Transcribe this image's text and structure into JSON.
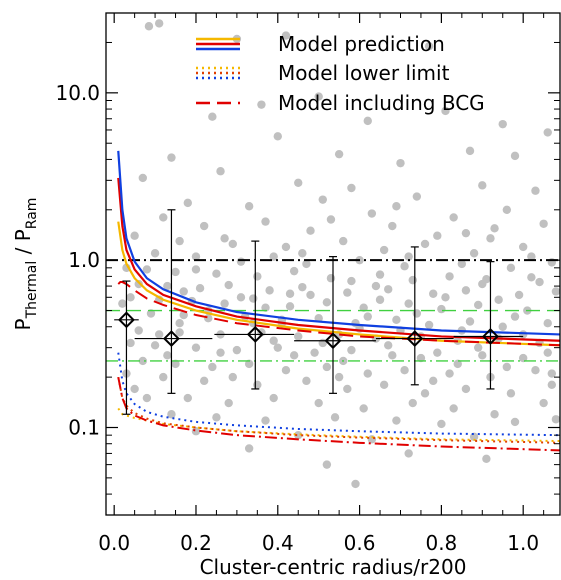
{
  "chart_data": {
    "type": "scatter",
    "title": "",
    "xlabel": "Cluster-centric radius/r200",
    "ylabel": {
      "main": "P",
      "sub1": "Thermal",
      "sep": " / ",
      "sub2": "Ram"
    },
    "xlim": [
      -0.02,
      1.09
    ],
    "ylim": [
      0.03,
      30
    ],
    "yscale": "log",
    "xticks": [
      "0.0",
      "0.2",
      "0.4",
      "0.6",
      "0.8",
      "1.0"
    ],
    "xtick_values": [
      0.0,
      0.2,
      0.4,
      0.6,
      0.8,
      1.0
    ],
    "yticks": [
      "0.1",
      "1.0",
      "10.0"
    ],
    "ytick_values": [
      0.1,
      1.0,
      10.0
    ],
    "legend": [
      {
        "label": "Model prediction",
        "style": "solid",
        "colors": [
          "#f5b800",
          "#e00000",
          "#1040e0"
        ]
      },
      {
        "label": "Model lower limit",
        "style": "dotted",
        "colors": [
          "#f5b800",
          "#e04000",
          "#1040e0"
        ]
      },
      {
        "label": "Model including BCG",
        "style": "dashed",
        "colors": [
          "#e00000"
        ]
      }
    ],
    "reference_lines": [
      {
        "y": 1.0,
        "style": "dash-dot",
        "color": "#000000"
      },
      {
        "y": 0.5,
        "style": "dashed",
        "color": "#40d040"
      },
      {
        "y": 0.25,
        "style": "dash-dot",
        "color": "#40d040"
      }
    ],
    "binned_points": [
      {
        "x": 0.03,
        "y": 0.44,
        "xerr": [
          0.0,
          0.06
        ],
        "yerr": [
          0.12,
          0.75
        ]
      },
      {
        "x": 0.14,
        "y": 0.34,
        "xerr": [
          0.05,
          0.24
        ],
        "yerr": [
          0.16,
          2.0
        ]
      },
      {
        "x": 0.345,
        "y": 0.36,
        "xerr": [
          0.245,
          0.44
        ],
        "yerr": [
          0.17,
          1.3
        ]
      },
      {
        "x": 0.535,
        "y": 0.33,
        "xerr": [
          0.44,
          0.64
        ],
        "yerr": [
          0.16,
          1.05
        ]
      },
      {
        "x": 0.735,
        "y": 0.34,
        "xerr": [
          0.64,
          0.83
        ],
        "yerr": [
          0.18,
          1.2
        ]
      },
      {
        "x": 0.92,
        "y": 0.35,
        "xerr": [
          0.83,
          1.0
        ],
        "yerr": [
          0.17,
          0.98
        ]
      }
    ],
    "model_curves": [
      {
        "style": "solid",
        "color": "#f5b800",
        "x": [
          0.01,
          0.02,
          0.03,
          0.05,
          0.08,
          0.12,
          0.2,
          0.3,
          0.45,
          0.6,
          0.8,
          1.09
        ],
        "y": [
          1.7,
          1.15,
          0.95,
          0.78,
          0.66,
          0.58,
          0.5,
          0.44,
          0.39,
          0.36,
          0.33,
          0.31
        ]
      },
      {
        "style": "solid",
        "color": "#e00000",
        "x": [
          0.01,
          0.02,
          0.03,
          0.05,
          0.08,
          0.12,
          0.2,
          0.3,
          0.45,
          0.6,
          0.8,
          1.09
        ],
        "y": [
          3.1,
          1.6,
          1.15,
          0.88,
          0.72,
          0.62,
          0.53,
          0.46,
          0.41,
          0.38,
          0.35,
          0.33
        ]
      },
      {
        "style": "solid",
        "color": "#1040e0",
        "x": [
          0.01,
          0.02,
          0.03,
          0.05,
          0.08,
          0.12,
          0.2,
          0.3,
          0.45,
          0.6,
          0.8,
          1.09
        ],
        "y": [
          4.5,
          2.0,
          1.35,
          0.98,
          0.78,
          0.67,
          0.56,
          0.49,
          0.44,
          0.41,
          0.38,
          0.36
        ]
      },
      {
        "style": "dashed",
        "color": "#e00000",
        "x": [
          0.01,
          0.015,
          0.02,
          0.03,
          0.05,
          0.08,
          0.12,
          0.2,
          0.3,
          0.45,
          0.6,
          0.8,
          1.09
        ],
        "y": [
          0.72,
          0.74,
          0.74,
          0.72,
          0.66,
          0.59,
          0.54,
          0.47,
          0.42,
          0.38,
          0.35,
          0.33,
          0.31
        ]
      },
      {
        "style": "dotted",
        "color": "#f5b800",
        "x": [
          0.01,
          0.02,
          0.03,
          0.05,
          0.08,
          0.12,
          0.2,
          0.3,
          0.45,
          0.6,
          0.8,
          1.09
        ],
        "y": [
          0.13,
          0.12,
          0.118,
          0.114,
          0.11,
          0.105,
          0.1,
          0.095,
          0.091,
          0.088,
          0.085,
          0.083
        ]
      },
      {
        "style": "dotted",
        "color": "#e04000",
        "x": [
          0.01,
          0.02,
          0.03,
          0.05,
          0.08,
          0.12,
          0.2,
          0.3,
          0.45,
          0.6,
          0.8,
          1.09
        ],
        "y": [
          0.2,
          0.15,
          0.135,
          0.122,
          0.113,
          0.106,
          0.1,
          0.095,
          0.09,
          0.087,
          0.084,
          0.081
        ]
      },
      {
        "style": "dotted",
        "color": "#1040e0",
        "x": [
          0.01,
          0.02,
          0.03,
          0.05,
          0.08,
          0.12,
          0.2,
          0.3,
          0.45,
          0.6,
          0.8,
          1.09
        ],
        "y": [
          0.28,
          0.19,
          0.16,
          0.138,
          0.124,
          0.116,
          0.108,
          0.103,
          0.098,
          0.095,
          0.092,
          0.09
        ]
      },
      {
        "style": "dash-dot",
        "color": "#e00000",
        "x": [
          0.01,
          0.02,
          0.03,
          0.05,
          0.08,
          0.12,
          0.2,
          0.3,
          0.45,
          0.6,
          0.8,
          1.09
        ],
        "y": [
          0.2,
          0.15,
          0.13,
          0.118,
          0.11,
          0.103,
          0.096,
          0.09,
          0.085,
          0.081,
          0.077,
          0.073
        ]
      }
    ],
    "scatter_color": "#c0c0c0",
    "scatter_points": [
      [
        0.085,
        25
      ],
      [
        0.11,
        26
      ],
      [
        0.3,
        21
      ],
      [
        0.42,
        22
      ],
      [
        0.77,
        19
      ],
      [
        0.95,
        6.5
      ],
      [
        1.06,
        5.8
      ],
      [
        0.36,
        8.5
      ],
      [
        0.5,
        9.5
      ],
      [
        0.62,
        6.8
      ],
      [
        0.81,
        7.8
      ],
      [
        0.87,
        4.5
      ],
      [
        0.98,
        4.2
      ],
      [
        0.24,
        7.2
      ],
      [
        0.4,
        5.5
      ],
      [
        0.55,
        4.3
      ],
      [
        0.7,
        3.8
      ],
      [
        0.14,
        4.1
      ],
      [
        0.26,
        3.4
      ],
      [
        0.45,
        2.9
      ],
      [
        0.58,
        2.7
      ],
      [
        0.74,
        2.4
      ],
      [
        0.9,
        2.8
      ],
      [
        1.03,
        2.6
      ],
      [
        0.07,
        3.1
      ],
      [
        0.18,
        2.2
      ],
      [
        0.33,
        2.1
      ],
      [
        0.51,
        2.3
      ],
      [
        0.63,
        1.9
      ],
      [
        0.83,
        1.8
      ],
      [
        0.96,
        2.0
      ],
      [
        0.12,
        1.8
      ],
      [
        0.22,
        1.6
      ],
      [
        0.37,
        1.7
      ],
      [
        0.48,
        1.5
      ],
      [
        0.68,
        1.6
      ],
      [
        0.79,
        1.4
      ],
      [
        0.93,
        1.55
      ],
      [
        1.05,
        1.65
      ],
      [
        0.05,
        1.4
      ],
      [
        0.16,
        1.3
      ],
      [
        0.29,
        1.25
      ],
      [
        0.42,
        1.2
      ],
      [
        0.56,
        1.3
      ],
      [
        0.66,
        1.15
      ],
      [
        0.76,
        1.25
      ],
      [
        0.88,
        1.1
      ],
      [
        1.0,
        1.2
      ],
      [
        0.1,
        1.1
      ],
      [
        0.2,
        1.05
      ],
      [
        0.31,
        0.98
      ],
      [
        0.39,
        1.05
      ],
      [
        0.47,
        0.95
      ],
      [
        0.6,
        1.0
      ],
      [
        0.71,
        0.92
      ],
      [
        0.85,
        0.95
      ],
      [
        0.97,
        0.9
      ],
      [
        1.07,
        0.97
      ],
      [
        0.08,
        0.88
      ],
      [
        0.15,
        0.85
      ],
      [
        0.25,
        0.83
      ],
      [
        0.35,
        0.8
      ],
      [
        0.44,
        0.86
      ],
      [
        0.53,
        0.78
      ],
      [
        0.65,
        0.82
      ],
      [
        0.73,
        0.76
      ],
      [
        0.82,
        0.8
      ],
      [
        0.91,
        0.77
      ],
      [
        1.02,
        0.79
      ],
      [
        0.06,
        0.72
      ],
      [
        0.13,
        0.7
      ],
      [
        0.21,
        0.68
      ],
      [
        0.28,
        0.71
      ],
      [
        0.38,
        0.66
      ],
      [
        0.46,
        0.69
      ],
      [
        0.57,
        0.64
      ],
      [
        0.67,
        0.67
      ],
      [
        0.78,
        0.63
      ],
      [
        0.86,
        0.66
      ],
      [
        0.99,
        0.62
      ],
      [
        1.08,
        0.65
      ],
      [
        0.04,
        0.6
      ],
      [
        0.11,
        0.58
      ],
      [
        0.19,
        0.57
      ],
      [
        0.27,
        0.55
      ],
      [
        0.34,
        0.59
      ],
      [
        0.43,
        0.53
      ],
      [
        0.52,
        0.56
      ],
      [
        0.61,
        0.52
      ],
      [
        0.72,
        0.55
      ],
      [
        0.8,
        0.51
      ],
      [
        0.89,
        0.54
      ],
      [
        1.01,
        0.5
      ],
      [
        0.09,
        0.48
      ],
      [
        0.17,
        0.47
      ],
      [
        0.23,
        0.45
      ],
      [
        0.32,
        0.46
      ],
      [
        0.41,
        0.44
      ],
      [
        0.5,
        0.45
      ],
      [
        0.59,
        0.42
      ],
      [
        0.69,
        0.44
      ],
      [
        0.77,
        0.41
      ],
      [
        0.87,
        0.43
      ],
      [
        0.95,
        0.4
      ],
      [
        1.06,
        0.42
      ],
      [
        0.06,
        0.38
      ],
      [
        0.16,
        0.37
      ],
      [
        0.26,
        0.36
      ],
      [
        0.36,
        0.37
      ],
      [
        0.45,
        0.35
      ],
      [
        0.55,
        0.36
      ],
      [
        0.64,
        0.34
      ],
      [
        0.75,
        0.35
      ],
      [
        0.84,
        0.33
      ],
      [
        0.94,
        0.34
      ],
      [
        1.04,
        0.32
      ],
      [
        0.1,
        0.31
      ],
      [
        0.2,
        0.3
      ],
      [
        0.3,
        0.29
      ],
      [
        0.4,
        0.3
      ],
      [
        0.49,
        0.28
      ],
      [
        0.58,
        0.29
      ],
      [
        0.68,
        0.27
      ],
      [
        0.79,
        0.28
      ],
      [
        0.9,
        0.27
      ],
      [
        1.0,
        0.26
      ],
      [
        0.07,
        0.25
      ],
      [
        0.15,
        0.24
      ],
      [
        0.24,
        0.23
      ],
      [
        0.33,
        0.24
      ],
      [
        0.42,
        0.22
      ],
      [
        0.52,
        0.23
      ],
      [
        0.62,
        0.21
      ],
      [
        0.71,
        0.22
      ],
      [
        0.82,
        0.21
      ],
      [
        0.92,
        0.2
      ],
      [
        1.03,
        0.22
      ],
      [
        0.12,
        0.2
      ],
      [
        0.22,
        0.19
      ],
      [
        0.35,
        0.18
      ],
      [
        0.47,
        0.19
      ],
      [
        0.57,
        0.17
      ],
      [
        0.66,
        0.18
      ],
      [
        0.76,
        0.16
      ],
      [
        0.86,
        0.17
      ],
      [
        0.97,
        0.16
      ],
      [
        1.07,
        0.18
      ],
      [
        0.05,
        0.17
      ],
      [
        0.18,
        0.15
      ],
      [
        0.28,
        0.14
      ],
      [
        0.39,
        0.15
      ],
      [
        0.5,
        0.14
      ],
      [
        0.61,
        0.13
      ],
      [
        0.73,
        0.14
      ],
      [
        0.83,
        0.13
      ],
      [
        0.93,
        0.12
      ],
      [
        1.05,
        0.14
      ],
      [
        0.14,
        0.12
      ],
      [
        0.25,
        0.115
      ],
      [
        0.37,
        0.11
      ],
      [
        0.54,
        0.115
      ],
      [
        0.69,
        0.11
      ],
      [
        0.8,
        0.105
      ],
      [
        0.98,
        0.108
      ],
      [
        1.08,
        0.112
      ],
      [
        0.2,
        0.095
      ],
      [
        0.45,
        0.09
      ],
      [
        0.63,
        0.085
      ],
      [
        0.88,
        0.088
      ],
      [
        0.33,
        0.075
      ],
      [
        0.72,
        0.07
      ],
      [
        0.91,
        0.065
      ],
      [
        0.52,
        0.06
      ],
      [
        0.59,
        0.046
      ],
      [
        0.27,
        1.35
      ],
      [
        0.53,
        1.75
      ],
      [
        0.69,
        2.1
      ],
      [
        0.86,
        1.45
      ],
      [
        1.02,
        1.05
      ],
      [
        0.31,
        0.6
      ],
      [
        0.48,
        0.62
      ],
      [
        0.74,
        0.48
      ],
      [
        0.98,
        0.46
      ],
      [
        0.23,
        0.5
      ],
      [
        0.41,
        0.42
      ],
      [
        0.6,
        0.39
      ],
      [
        0.85,
        0.38
      ],
      [
        0.17,
        0.65
      ],
      [
        0.37,
        0.52
      ],
      [
        0.65,
        0.58
      ],
      [
        0.94,
        0.58
      ],
      [
        0.03,
        0.9
      ],
      [
        0.02,
        0.55
      ],
      [
        0.04,
        0.32
      ],
      [
        0.03,
        0.21
      ],
      [
        0.08,
        0.15
      ],
      [
        0.44,
        0.27
      ],
      [
        0.67,
        0.31
      ],
      [
        0.89,
        0.3
      ],
      [
        1.06,
        0.28
      ],
      [
        0.29,
        0.2
      ],
      [
        0.55,
        0.2
      ],
      [
        0.78,
        0.19
      ],
      [
        0.96,
        0.23
      ],
      [
        0.13,
        0.27
      ],
      [
        0.39,
        0.33
      ],
      [
        0.62,
        0.46
      ],
      [
        0.81,
        0.6
      ],
      [
        1.04,
        0.74
      ],
      [
        0.2,
        0.88
      ],
      [
        0.46,
        1.1
      ],
      [
        0.72,
        1.05
      ],
      [
        0.92,
        1.35
      ],
      [
        0.58,
        0.75
      ],
      [
        0.34,
        0.42
      ],
      [
        0.26,
        0.28
      ],
      [
        0.51,
        0.32
      ],
      [
        0.7,
        0.38
      ],
      [
        0.84,
        0.24
      ],
      [
        1.0,
        0.36
      ],
      [
        0.16,
        0.42
      ],
      [
        0.43,
        0.63
      ],
      [
        0.64,
        0.7
      ],
      [
        0.9,
        0.72
      ],
      [
        0.11,
        0.36
      ],
      [
        0.56,
        0.25
      ],
      [
        0.75,
        0.26
      ],
      [
        1.07,
        0.21
      ]
    ]
  }
}
